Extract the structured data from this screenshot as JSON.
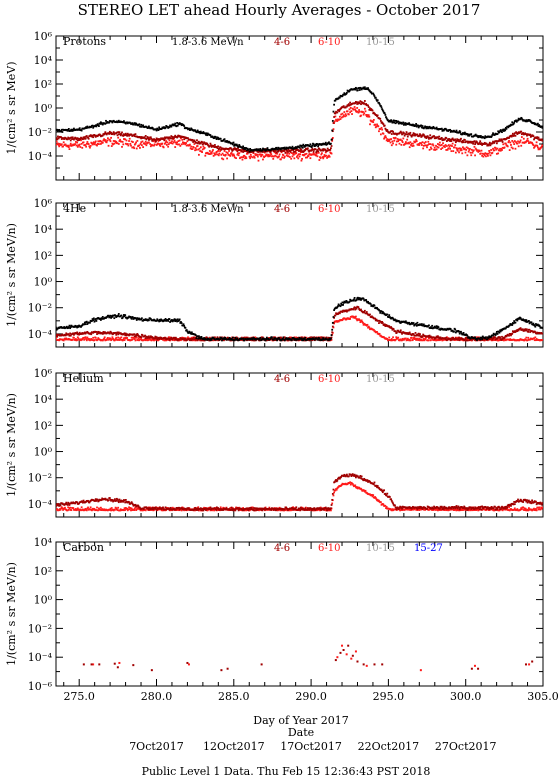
{
  "title": "STEREO LET ahead Hourly Averages - October 2017",
  "xlabel": "Day of Year 2017",
  "date_label": "Date",
  "footer": "Public Level 1 Data. Thu Feb 15 12:36:43 PST 2018",
  "colors": {
    "1.8-3.6": "#000000",
    "4-6": "#a00000",
    "6-10": "#ff1a1a",
    "10-15": "#999999",
    "15-27": "#0000ff"
  },
  "chart_data": [
    {
      "type": "scatter",
      "name": "Protons",
      "ylabel": "1/(cm² s sr MeV)",
      "xlim": [
        273.5,
        305.0
      ],
      "ylim_log10": [
        -6,
        6
      ],
      "yticks": [
        "10^6",
        "10^4",
        "10^2",
        "10^0",
        "10^-2",
        "10^-4"
      ],
      "legend": [
        "1.8-3.6 MeV/n",
        "4-6",
        "6-10",
        "10-15"
      ],
      "series": [
        {
          "name": "1.8-3.6 MeV/n",
          "color": "#000000",
          "knots": [
            [
              273.5,
              -1.9
            ],
            [
              275.0,
              -1.8
            ],
            [
              276.0,
              -1.5
            ],
            [
              277.0,
              -1.1
            ],
            [
              278.5,
              -1.3
            ],
            [
              280.0,
              -1.8
            ],
            [
              281.5,
              -1.3
            ],
            [
              282.0,
              -1.7
            ],
            [
              283.5,
              -2.3
            ],
            [
              286.0,
              -3.5
            ],
            [
              288.0,
              -3.4
            ],
            [
              291.0,
              -3.0
            ],
            [
              291.3,
              -3.0
            ],
            [
              291.5,
              0.6
            ],
            [
              292.0,
              1.0
            ],
            [
              292.5,
              1.5
            ],
            [
              293.5,
              1.7
            ],
            [
              294.0,
              1.2
            ],
            [
              294.5,
              0.2
            ],
            [
              295.0,
              -1.1
            ],
            [
              296.0,
              -1.3
            ],
            [
              297.5,
              -1.6
            ],
            [
              299.0,
              -1.9
            ],
            [
              300.5,
              -2.3
            ],
            [
              301.5,
              -2.4
            ],
            [
              302.5,
              -1.8
            ],
            [
              303.5,
              -0.9
            ],
            [
              304.2,
              -1.1
            ],
            [
              305.0,
              -1.6
            ]
          ],
          "noise": 0.12
        },
        {
          "name": "4-6",
          "color": "#a00000",
          "knots": [
            [
              273.5,
              -2.5
            ],
            [
              275.0,
              -2.6
            ],
            [
              277.0,
              -2.1
            ],
            [
              278.5,
              -2.3
            ],
            [
              280.0,
              -2.7
            ],
            [
              281.5,
              -2.3
            ],
            [
              282.0,
              -2.6
            ],
            [
              284.0,
              -3.3
            ],
            [
              286.0,
              -3.6
            ],
            [
              291.0,
              -3.5
            ],
            [
              291.3,
              -3.5
            ],
            [
              291.5,
              -0.5
            ],
            [
              292.0,
              0.0
            ],
            [
              293.0,
              0.5
            ],
            [
              293.5,
              0.4
            ],
            [
              294.5,
              -1.0
            ],
            [
              295.0,
              -2.0
            ],
            [
              297.0,
              -2.3
            ],
            [
              300.0,
              -2.8
            ],
            [
              301.5,
              -3.0
            ],
            [
              302.5,
              -2.6
            ],
            [
              303.5,
              -2.0
            ],
            [
              305.0,
              -2.7
            ]
          ],
          "noise": 0.15
        },
        {
          "name": "6-10",
          "color": "#ff1a1a",
          "knots": [
            [
              273.5,
              -3.1
            ],
            [
              275.0,
              -3.1
            ],
            [
              277.0,
              -2.8
            ],
            [
              279.0,
              -3.0
            ],
            [
              281.5,
              -2.9
            ],
            [
              283.0,
              -3.6
            ],
            [
              286.0,
              -4.0
            ],
            [
              291.0,
              -3.9
            ],
            [
              291.3,
              -3.9
            ],
            [
              291.5,
              -1.2
            ],
            [
              292.0,
              -0.6
            ],
            [
              292.8,
              -0.2
            ],
            [
              293.5,
              -0.5
            ],
            [
              294.5,
              -1.8
            ],
            [
              295.0,
              -2.7
            ],
            [
              297.0,
              -3.0
            ],
            [
              300.0,
              -3.5
            ],
            [
              301.5,
              -3.8
            ],
            [
              303.0,
              -3.0
            ],
            [
              304.0,
              -2.8
            ],
            [
              305.0,
              -3.4
            ]
          ],
          "noise": 0.35
        }
      ]
    },
    {
      "type": "scatter",
      "name": "4He",
      "ylabel": "1/(cm² s sr MeV/n)",
      "xlim": [
        273.5,
        305.0
      ],
      "ylim_log10": [
        -5,
        6
      ],
      "yticks": [
        "10^6",
        "10^4",
        "10^2",
        "10^0",
        "10^-2",
        "10^-4"
      ],
      "legend": [
        "1.8-3.6 MeV/n",
        "4-6",
        "6-10",
        "10-15"
      ],
      "series": [
        {
          "name": "1.8-3.6 MeV/n",
          "color": "#000000",
          "knots": [
            [
              273.5,
              -3.6
            ],
            [
              275.0,
              -3.4
            ],
            [
              276.0,
              -2.9
            ],
            [
              277.5,
              -2.6
            ],
            [
              279.0,
              -2.9
            ],
            [
              281.5,
              -3.0
            ],
            [
              282.0,
              -3.8
            ],
            [
              283.0,
              -4.4
            ],
            [
              291.3,
              -4.4
            ],
            [
              291.5,
              -2.1
            ],
            [
              292.0,
              -1.7
            ],
            [
              293.0,
              -1.3
            ],
            [
              293.5,
              -1.4
            ],
            [
              294.5,
              -2.3
            ],
            [
              295.5,
              -3.0
            ],
            [
              297.5,
              -3.4
            ],
            [
              299.5,
              -3.8
            ],
            [
              300.5,
              -4.4
            ],
            [
              301.5,
              -4.3
            ],
            [
              302.5,
              -3.6
            ],
            [
              303.5,
              -2.8
            ],
            [
              304.5,
              -3.3
            ],
            [
              305.0,
              -3.5
            ]
          ],
          "noise": 0.12
        },
        {
          "name": "4-6",
          "color": "#a00000",
          "knots": [
            [
              273.5,
              -4.1
            ],
            [
              276.0,
              -3.9
            ],
            [
              278.0,
              -4.0
            ],
            [
              280.0,
              -4.3
            ],
            [
              283.0,
              -4.5
            ],
            [
              291.3,
              -4.5
            ],
            [
              291.5,
              -2.6
            ],
            [
              292.0,
              -2.3
            ],
            [
              293.0,
              -2.0
            ],
            [
              294.5,
              -3.1
            ],
            [
              295.5,
              -3.8
            ],
            [
              297.5,
              -4.2
            ],
            [
              300.0,
              -4.5
            ],
            [
              302.5,
              -4.3
            ],
            [
              303.5,
              -3.6
            ],
            [
              305.0,
              -4.0
            ]
          ],
          "noise": 0.12
        },
        {
          "name": "6-10",
          "color": "#ff1a1a",
          "knots": [
            [
              273.5,
              -4.5
            ],
            [
              291.3,
              -4.6
            ],
            [
              291.5,
              -3.1
            ],
            [
              292.0,
              -2.9
            ],
            [
              292.8,
              -2.7
            ],
            [
              294.0,
              -3.7
            ],
            [
              295.0,
              -4.5
            ],
            [
              305.0,
              -4.5
            ]
          ],
          "noise": 0.1
        }
      ]
    },
    {
      "type": "scatter",
      "name": "Helium",
      "ylabel": "1/(cm² s sr MeV/n)",
      "xlim": [
        273.5,
        305.0
      ],
      "ylim_log10": [
        -5,
        6
      ],
      "yticks": [
        "10^6",
        "10^4",
        "10^2",
        "10^0",
        "10^-2",
        "10^-4"
      ],
      "legend": [
        "4-6",
        "6-10",
        "10-15"
      ],
      "series": [
        {
          "name": "4-6",
          "color": "#a00000",
          "knots": [
            [
              273.5,
              -4.1
            ],
            [
              275.0,
              -3.9
            ],
            [
              276.5,
              -3.6
            ],
            [
              278.0,
              -3.8
            ],
            [
              279.0,
              -4.3
            ],
            [
              282.0,
              -4.4
            ],
            [
              291.3,
              -4.4
            ],
            [
              291.5,
              -2.3
            ],
            [
              292.0,
              -1.9
            ],
            [
              292.8,
              -1.8
            ],
            [
              294.0,
              -2.4
            ],
            [
              295.0,
              -3.4
            ],
            [
              295.5,
              -4.3
            ],
            [
              302.5,
              -4.3
            ],
            [
              303.5,
              -3.7
            ],
            [
              305.0,
              -4.0
            ]
          ],
          "noise": 0.12
        },
        {
          "name": "6-10",
          "color": "#ff1a1a",
          "knots": [
            [
              273.5,
              -4.5
            ],
            [
              291.3,
              -4.5
            ],
            [
              291.5,
              -3.0
            ],
            [
              292.0,
              -2.5
            ],
            [
              292.5,
              -2.4
            ],
            [
              294.0,
              -3.4
            ],
            [
              295.0,
              -4.4
            ],
            [
              305.0,
              -4.5
            ]
          ],
          "noise": 0.1
        }
      ]
    },
    {
      "type": "scatter",
      "name": "Carbon",
      "ylabel": "1/(cm² s sr MeV/n)",
      "xlim": [
        273.5,
        305.0
      ],
      "ylim_log10": [
        -6,
        4
      ],
      "yticks": [
        "10^4",
        "10^2",
        "10^0",
        "10^-2",
        "10^-4",
        "10^-6"
      ],
      "xticks": [
        "275.0",
        "280.0",
        "285.0",
        "290.0",
        "295.0",
        "300.0",
        "305.0"
      ],
      "legend": [
        "4-6",
        "6-10",
        "10-15",
        "15-27"
      ],
      "series": [
        {
          "name": "4-6",
          "color": "#a00000",
          "points": [
            [
              275.3,
              -4.5
            ],
            [
              275.8,
              -4.5
            ],
            [
              276.3,
              -4.5
            ],
            [
              277.3,
              -4.45
            ],
            [
              277.5,
              -4.7
            ],
            [
              278.5,
              -4.55
            ],
            [
              279.7,
              -4.9
            ],
            [
              282.0,
              -4.4
            ],
            [
              284.2,
              -4.9
            ],
            [
              284.6,
              -4.8
            ],
            [
              286.8,
              -4.5
            ],
            [
              291.6,
              -4.2
            ],
            [
              291.9,
              -3.7
            ],
            [
              292.1,
              -3.5
            ],
            [
              292.4,
              -3.2
            ],
            [
              292.7,
              -3.9
            ],
            [
              293.0,
              -4.3
            ],
            [
              293.4,
              -4.5
            ],
            [
              294.1,
              -4.5
            ],
            [
              294.6,
              -4.5
            ],
            [
              300.4,
              -4.8
            ],
            [
              300.8,
              -4.8
            ],
            [
              303.9,
              -4.5
            ],
            [
              304.3,
              -4.3
            ]
          ]
        },
        {
          "name": "6-10",
          "color": "#ff1a1a",
          "points": [
            [
              275.9,
              -4.5
            ],
            [
              277.6,
              -4.4
            ],
            [
              282.1,
              -4.5
            ],
            [
              291.7,
              -4.0
            ],
            [
              292.0,
              -3.2
            ],
            [
              292.3,
              -3.8
            ],
            [
              292.6,
              -4.1
            ],
            [
              292.9,
              -3.6
            ],
            [
              293.6,
              -4.6
            ],
            [
              297.1,
              -4.9
            ],
            [
              300.6,
              -4.6
            ],
            [
              304.1,
              -4.5
            ]
          ]
        }
      ]
    }
  ],
  "date_axis": {
    "ticks": [
      "7Oct2017",
      "12Oct2017",
      "17Oct2017",
      "22Oct2017",
      "27Oct2017"
    ],
    "doy": [
      280.0,
      285.0,
      290.0,
      295.0,
      300.0
    ]
  }
}
